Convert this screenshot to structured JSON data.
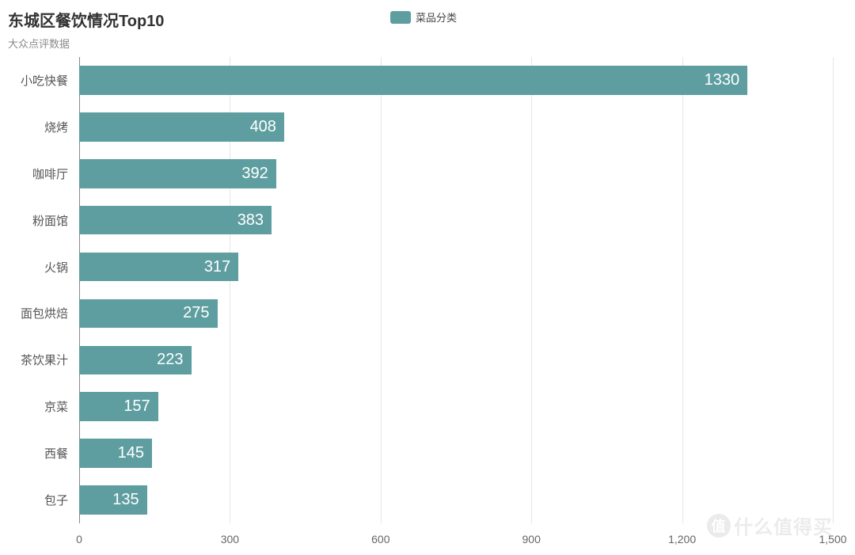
{
  "chart": {
    "type": "bar-horizontal",
    "title": "东城区餐饮情况Top10",
    "subtitle": "大众点评数据",
    "title_fontsize": 20,
    "title_color": "#333333",
    "subtitle_fontsize": 13,
    "subtitle_color": "#8a8a8a",
    "background_color": "#ffffff",
    "bar_color": "#5f9ea0",
    "grid_color": "#e6e6e6",
    "axis_color": "#888888",
    "value_label_color": "#ffffff",
    "value_label_fontsize": 20,
    "category_label_color": "#555555",
    "category_label_fontsize": 15,
    "tick_label_color": "#666666",
    "tick_label_fontsize": 14,
    "bar_height_ratio": 0.62,
    "legend": {
      "label": "菜品分类",
      "swatch_color": "#5f9ea0"
    },
    "x_axis": {
      "min": 0,
      "max": 1500,
      "ticks": [
        0,
        300,
        600,
        900,
        1200,
        1500
      ],
      "tick_labels": [
        "0",
        "300",
        "600",
        "900",
        "1,200",
        "1,500"
      ]
    },
    "categories": [
      "小吃快餐",
      "烧烤",
      "咖啡厅",
      "粉面馆",
      "火锅",
      "面包烘焙",
      "茶饮果汁",
      "京菜",
      "西餐",
      "包子"
    ],
    "values": [
      1330,
      408,
      392,
      383,
      317,
      275,
      223,
      157,
      145,
      135
    ]
  },
  "watermark": {
    "badge_char": "值",
    "text": "什么值得买"
  }
}
